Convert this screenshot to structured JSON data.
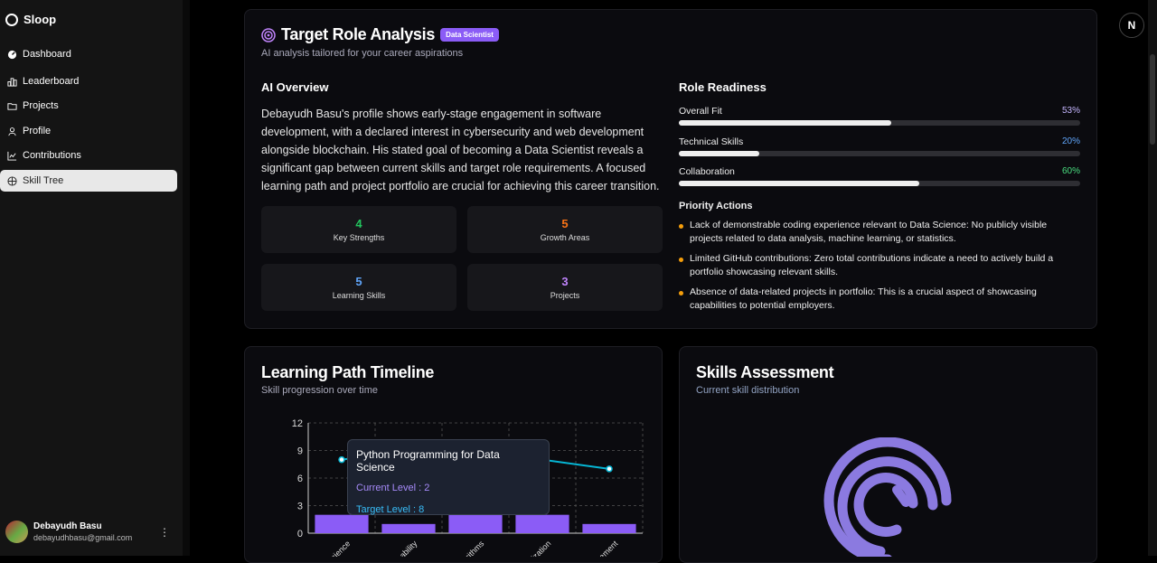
{
  "sidebar": {
    "brand": "Sloop",
    "items": [
      {
        "label": "Dashboard",
        "icon": "dashboard-icon"
      },
      {
        "label": "Leaderboard",
        "icon": "leaderboard-icon"
      },
      {
        "label": "Projects",
        "icon": "folder-icon"
      },
      {
        "label": "Profile",
        "icon": "user-icon"
      },
      {
        "label": "Contributions",
        "icon": "chart-line-icon"
      },
      {
        "label": "Skill Tree",
        "icon": "skill-tree-icon",
        "active": true
      }
    ],
    "user": {
      "name": "Debayudh Basu",
      "email": "debayudhbasu@gmail.com"
    }
  },
  "header": {
    "avatar_letter": "N"
  },
  "target": {
    "title": "Target Role Analysis",
    "badge": "Data Scientist",
    "subtitle": "AI analysis tailored for your career aspirations",
    "overview_heading": "AI Overview",
    "overview_text": "Debayudh Basu's profile shows early-stage engagement in software development, with a declared interest in cybersecurity and web development alongside blockchain. His stated goal of becoming a Data Scientist reveals a significant gap between current skills and target role requirements. A focused learning path and project portfolio are crucial for achieving this career transition.",
    "stats": [
      {
        "value": "4",
        "label": "Key Strengths",
        "color": "#22c55e"
      },
      {
        "value": "5",
        "label": "Growth Areas",
        "color": "#f97316"
      },
      {
        "value": "5",
        "label": "Learning Skills",
        "color": "#60a5fa"
      },
      {
        "value": "3",
        "label": "Projects",
        "color": "#c084fc"
      }
    ],
    "readiness_heading": "Role Readiness",
    "readiness": [
      {
        "label": "Overall Fit",
        "value": "53%",
        "fraction": 0.53,
        "color": "#c4b5fd"
      },
      {
        "label": "Technical Skills",
        "value": "20%",
        "fraction": 0.2,
        "color": "#60a5fa"
      },
      {
        "label": "Collaboration",
        "value": "60%",
        "fraction": 0.6,
        "color": "#4ade80"
      }
    ],
    "priority_heading": "Priority Actions",
    "priority_actions": [
      "Lack of demonstrable coding experience relevant to Data Science: No publicly visible projects related to data analysis, machine learning, or statistics.",
      "Limited GitHub contributions: Zero total contributions indicate a need to actively build a portfolio showcasing relevant skills.",
      "Absence of data-related projects in portfolio: This is a crucial aspect of showcasing capabilities to potential employers."
    ]
  },
  "timeline": {
    "title": "Learning Path Timeline",
    "subtitle": "Skill progression over time",
    "tooltip": {
      "title": "Python Programming for Data Science",
      "current": "Current Level : 2",
      "target": "Target Level : 8"
    }
  },
  "skills": {
    "title": "Skills Assessment",
    "subtitle": "Current skill distribution"
  },
  "chart_data": {
    "type": "bar",
    "categories": [
      "Science",
      "ability",
      "orithms",
      "lization",
      "gement"
    ],
    "series": [
      {
        "values": [
          2,
          1,
          2,
          2,
          1
        ]
      },
      {
        "values": [
          8,
          9,
          9,
          8,
          7
        ]
      }
    ],
    "ylim": [
      0,
      12
    ],
    "yticks": [
      0,
      3,
      6,
      9,
      12
    ],
    "grid": true,
    "colors": {
      "bars": "#8b5cf6",
      "line": "#06b6d4"
    }
  }
}
